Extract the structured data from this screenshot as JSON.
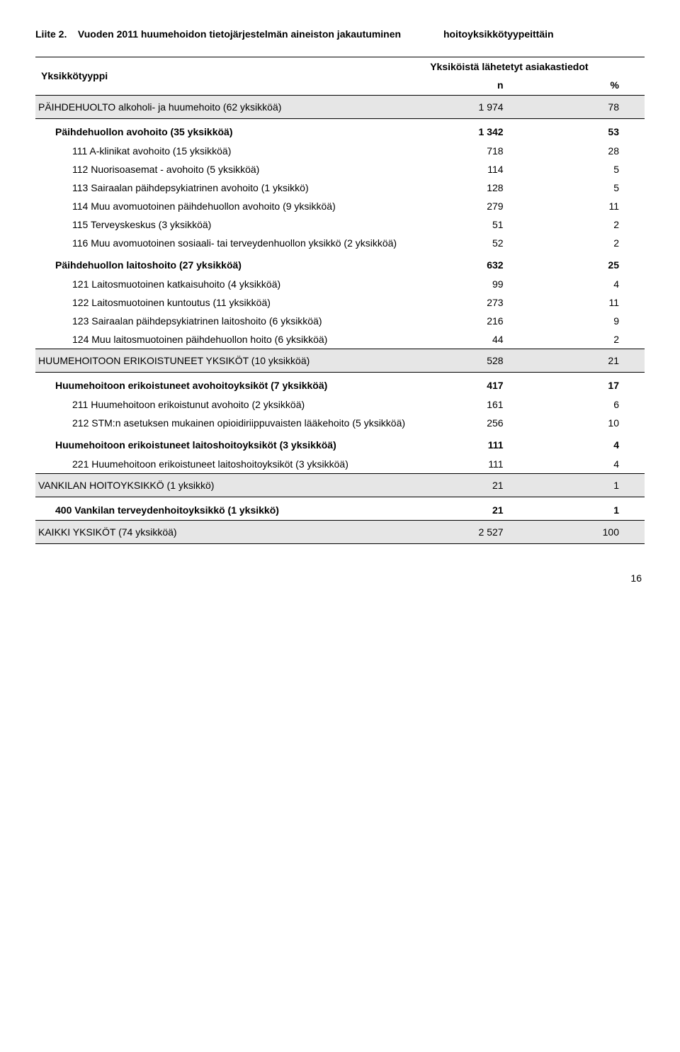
{
  "heading": {
    "liite_prefix": "Liite 2.",
    "title_line1": "Vuoden 2011 huumehoidon tietojärjestelmän aineiston jakautuminen",
    "title_line2": "hoitoyksikkötyypeittäin"
  },
  "table": {
    "header": {
      "unit_type": "Yksikkötyyppi",
      "sent_info": "Yksiköistä lähetetyt asiakastiedot",
      "n": "n",
      "pct": "%"
    },
    "rows": [
      {
        "style": "cat",
        "label": "PÄIHDEHUOLTO alkoholi- ja huumehoito (62 yksikköä)",
        "n": "1 974",
        "p": "78"
      },
      {
        "style": "sub1",
        "label": "Päihdehuollon avohoito (35 yksikköä)",
        "n": "1 342",
        "p": "53"
      },
      {
        "style": "sub2",
        "label": "111 A-klinikat avohoito (15 yksikköä)",
        "n": "718",
        "p": "28"
      },
      {
        "style": "sub2",
        "label": "112 Nuorisoasemat - avohoito (5 yksikköä)",
        "n": "114",
        "p": "5"
      },
      {
        "style": "sub2",
        "label": "113 Sairaalan päihdepsykiatrinen avohoito (1 yksikkö)",
        "n": "128",
        "p": "5"
      },
      {
        "style": "sub2",
        "label": "114 Muu avomuotoinen päihdehuollon avohoito (9 yksikköä)",
        "n": "279",
        "p": "11"
      },
      {
        "style": "sub2",
        "label": "115 Terveyskeskus (3 yksikköä)",
        "n": "51",
        "p": "2"
      },
      {
        "style": "sub2",
        "label": "116 Muu avomuotoinen sosiaali- tai terveydenhuollon yksikkö (2 yksikköä)",
        "n": "52",
        "p": "2"
      },
      {
        "style": "sub1",
        "label": "Päihdehuollon laitoshoito (27 yksikköä)",
        "n": "632",
        "p": "25"
      },
      {
        "style": "sub2",
        "label": "121 Laitosmuotoinen katkaisuhoito (4 yksikköä)",
        "n": "99",
        "p": "4"
      },
      {
        "style": "sub2",
        "label": "122 Laitosmuotoinen kuntoutus (11 yksikköä)",
        "n": "273",
        "p": "11"
      },
      {
        "style": "sub2",
        "label": "123 Sairaalan päihdepsykiatrinen laitoshoito (6 yksikköä)",
        "n": "216",
        "p": "9"
      },
      {
        "style": "sub2",
        "label": "124 Muu laitosmuotoinen päihdehuollon hoito (6 yksikköä)",
        "n": "44",
        "p": "2"
      },
      {
        "style": "cat",
        "label": "HUUMEHOITOON ERIKOISTUNEET YKSIKÖT (10 yksikköä)",
        "n": "528",
        "p": "21"
      },
      {
        "style": "sub1",
        "label": "Huumehoitoon erikoistuneet avohoitoyksiköt  (7 yksikköä)",
        "n": "417",
        "p": "17"
      },
      {
        "style": "sub2",
        "label": "211 Huumehoitoon erikoistunut avohoito (2 yksikköä)",
        "n": "161",
        "p": "6"
      },
      {
        "style": "sub2",
        "label": "212 STM:n asetuksen mukainen opioidiriippuvaisten lääkehoito (5 yksikköä)",
        "n": "256",
        "p": "10"
      },
      {
        "style": "sub1",
        "label": "Huumehoitoon erikoistuneet laitoshoitoyksiköt  (3 yksikköä)",
        "n": "111",
        "p": "4"
      },
      {
        "style": "sub2",
        "label": "221 Huumehoitoon erikoistuneet laitoshoitoyksiköt (3 yksikköä)",
        "n": "111",
        "p": "4"
      },
      {
        "style": "cat",
        "label": "VANKILAN HOITOYKSIKKÖ (1 yksikkö)",
        "n": "21",
        "p": "1"
      },
      {
        "style": "sub1",
        "label": "400 Vankilan terveydenhoitoyksikkö (1 yksikkö)",
        "n": "21",
        "p": "1"
      },
      {
        "style": "cat",
        "label": "KAIKKI YKSIKÖT (74 yksikköä)",
        "n": "2 527",
        "p": "100"
      }
    ]
  },
  "page_number": "16",
  "style": {
    "border_color": "#000000",
    "cat_bg": "#e6e6e6",
    "body_bg": "#ffffff"
  }
}
